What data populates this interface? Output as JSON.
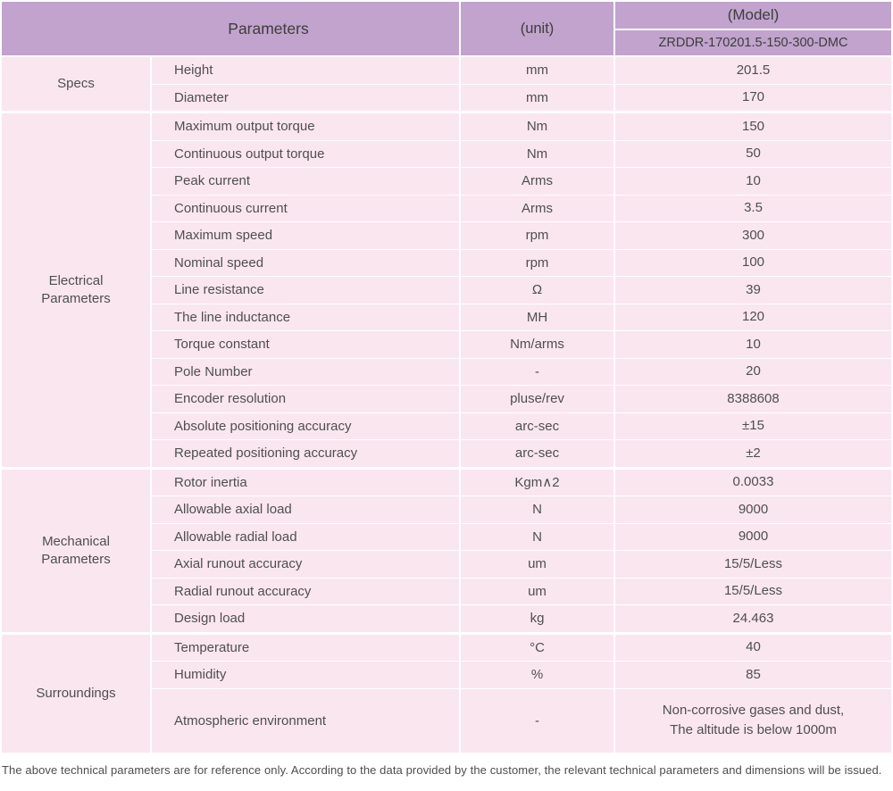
{
  "header": {
    "parameters_label": "Parameters",
    "unit_label": "(unit)",
    "model_label": "(Model)",
    "model_value": "ZRDDR-170201.5-150-300-DMC"
  },
  "sections": [
    {
      "label": "Specs",
      "rows": [
        {
          "param": "Height",
          "unit": "mm",
          "value": "201.5"
        },
        {
          "param": "Diameter",
          "unit": "mm",
          "value": "170"
        }
      ]
    },
    {
      "label": "Electrical\nParameters",
      "rows": [
        {
          "param": "Maximum output torque",
          "unit": "Nm",
          "value": "150"
        },
        {
          "param": "Continuous output torque",
          "unit": "Nm",
          "value": "50"
        },
        {
          "param": "Peak current",
          "unit": "Arms",
          "value": "10"
        },
        {
          "param": "Continuous current",
          "unit": "Arms",
          "value": "3.5"
        },
        {
          "param": "Maximum speed",
          "unit": "rpm",
          "value": "300"
        },
        {
          "param": "Nominal speed",
          "unit": "rpm",
          "value": "100"
        },
        {
          "param": "Line resistance",
          "unit": "Ω",
          "value": "39"
        },
        {
          "param": "The line inductance",
          "unit": "MH",
          "value": "120"
        },
        {
          "param": "Torque constant",
          "unit": "Nm/arms",
          "value": "10"
        },
        {
          "param": "Pole Number",
          "unit": "-",
          "value": "20"
        },
        {
          "param": "Encoder resolution",
          "unit": "pluse/rev",
          "value": "8388608"
        },
        {
          "param": "Absolute positioning accuracy",
          "unit": "arc-sec",
          "value": "±15"
        },
        {
          "param": "Repeated positioning accuracy",
          "unit": "arc-sec",
          "value": "±2"
        }
      ]
    },
    {
      "label": "Mechanical\nParameters",
      "rows": [
        {
          "param": "Rotor inertia",
          "unit": "Kgm∧2",
          "value": "0.0033"
        },
        {
          "param": "Allowable axial load",
          "unit": "N",
          "value": "9000"
        },
        {
          "param": "Allowable radial load",
          "unit": "N",
          "value": "9000"
        },
        {
          "param": "Axial runout accuracy",
          "unit": "um",
          "value": "15/5/Less"
        },
        {
          "param": "Radial runout accuracy",
          "unit": "um",
          "value": "15/5/Less"
        },
        {
          "param": "Design load",
          "unit": "kg",
          "value": "24.463"
        }
      ]
    },
    {
      "label": "Surroundings",
      "rows": [
        {
          "param": "Temperature",
          "unit": "°C",
          "value": "40"
        },
        {
          "param": "Humidity",
          "unit": "%",
          "value": "85"
        },
        {
          "param": "Atmospheric environment",
          "unit": "-",
          "value": "Non-corrosive gases and dust,\nThe altitude is below 1000m",
          "tall": true
        }
      ]
    }
  ],
  "footnote": "The above technical parameters are for reference only. According to the data provided by the customer, the relevant technical parameters and dimensions will be issued.",
  "colors": {
    "header_bg": "#c1a3cd",
    "row_bg": "#fae6ef",
    "divider": "#ffffff",
    "body_text": "#4f4f4f",
    "header_text": "#3d3d3d"
  }
}
